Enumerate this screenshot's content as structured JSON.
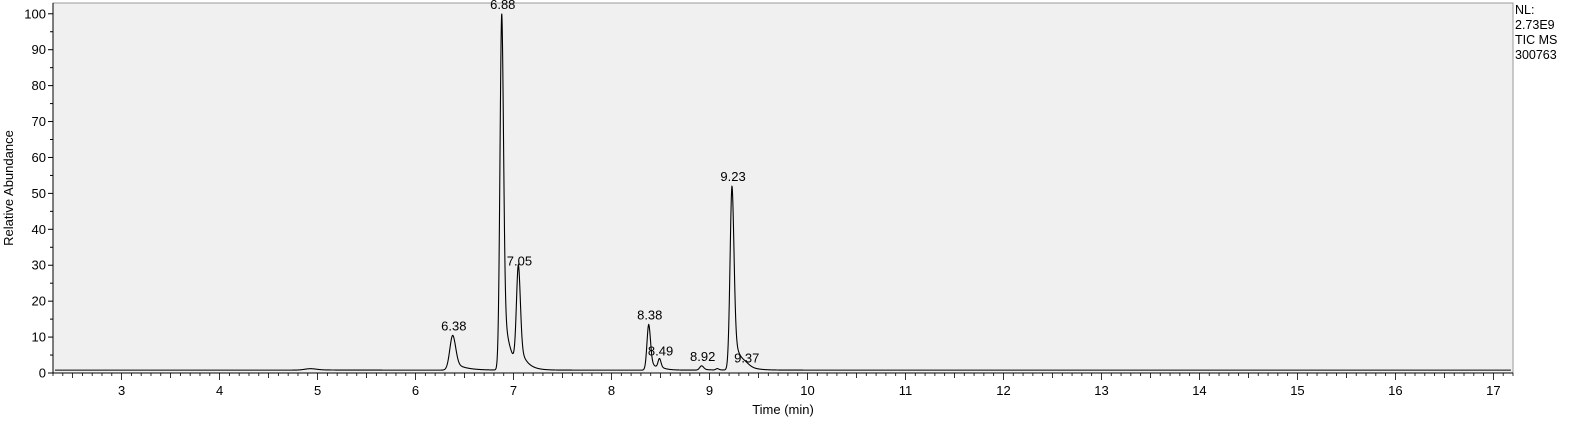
{
  "chart_data": {
    "type": "line",
    "xlabel": "Time (min)",
    "ylabel": "Relative Abundance",
    "xlim": [
      2.3,
      17.2
    ],
    "ylim": [
      0,
      103
    ],
    "xticks": [
      3,
      4,
      5,
      6,
      7,
      8,
      9,
      10,
      11,
      12,
      13,
      14,
      15,
      16,
      17
    ],
    "yticks": [
      0,
      10,
      20,
      30,
      40,
      50,
      60,
      70,
      80,
      90,
      100
    ],
    "grid": false,
    "line_color": "#000000",
    "plot_background": "#f0f0f0",
    "baseline": 0.8,
    "peaks": [
      {
        "label": "",
        "rt": 4.93,
        "height": 1.2,
        "width": 0.06
      },
      {
        "label": "6.38",
        "rt": 6.38,
        "height": 10.5,
        "width": 0.03
      },
      {
        "label": "6.88",
        "rt": 6.88,
        "height": 100,
        "width": 0.018
      },
      {
        "label": "7.05",
        "rt": 7.05,
        "height": 28.5,
        "width": 0.02
      },
      {
        "label": "8.38",
        "rt": 8.38,
        "height": 13.5,
        "width": 0.018
      },
      {
        "label": "8.49",
        "rt": 8.49,
        "height": 3.5,
        "width": 0.015
      },
      {
        "label": "8.92",
        "rt": 8.92,
        "height": 2.0,
        "width": 0.02
      },
      {
        "label": "",
        "rt": 9.08,
        "height": 1.2,
        "width": 0.015
      },
      {
        "label": "9.23",
        "rt": 9.23,
        "height": 52,
        "width": 0.02
      },
      {
        "label": "9.37",
        "rt": 9.37,
        "height": 1.5,
        "width": 0.04
      }
    ],
    "info_lines": [
      "NL:",
      "2.73E9",
      "TIC  MS",
      "300763"
    ]
  }
}
